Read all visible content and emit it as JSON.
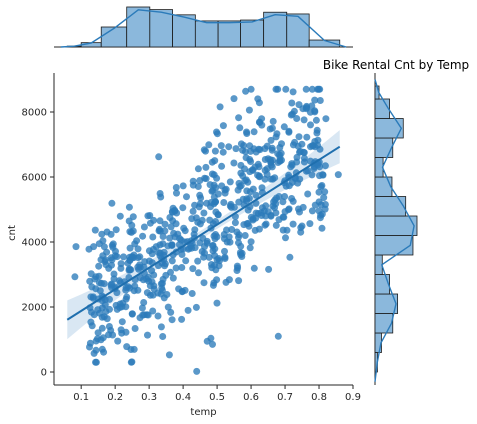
{
  "chart_data": {
    "type": "scatter",
    "title": "Bike Rental Cnt by Temp",
    "xlabel": "temp",
    "ylabel": "cnt",
    "xlim": [
      0.02,
      0.9
    ],
    "ylim": [
      -400,
      9200
    ],
    "xticks": [
      "0.1",
      "0.2",
      "0.3",
      "0.4",
      "0.5",
      "0.6",
      "0.7",
      "0.8",
      "0.9"
    ],
    "yticks": [
      "0",
      "2000",
      "4000",
      "6000",
      "8000"
    ],
    "grid": false,
    "point_color": "#2b7bba",
    "hist_color": "#8bb8dc",
    "regression": {
      "slope": 6640,
      "intercept": 1215
    },
    "marginal_x": {
      "bin_edges": [
        0.059,
        0.1,
        0.159,
        0.234,
        0.302,
        0.369,
        0.436,
        0.503,
        0.569,
        0.637,
        0.705,
        0.771,
        0.861
      ],
      "counts": [
        1,
        5,
        23,
        46,
        43,
        37,
        30,
        30,
        31,
        40,
        38,
        8
      ]
    },
    "marginal_y": {
      "bin_edges": [
        0,
        600,
        1200,
        1800,
        2400,
        3000,
        3600,
        4200,
        4800,
        5400,
        6000,
        6600,
        7200,
        7800,
        8400,
        8800
      ],
      "counts": [
        3,
        8,
        22,
        28,
        18,
        9,
        47,
        52,
        38,
        21,
        10,
        22,
        35,
        18,
        5
      ]
    }
  }
}
